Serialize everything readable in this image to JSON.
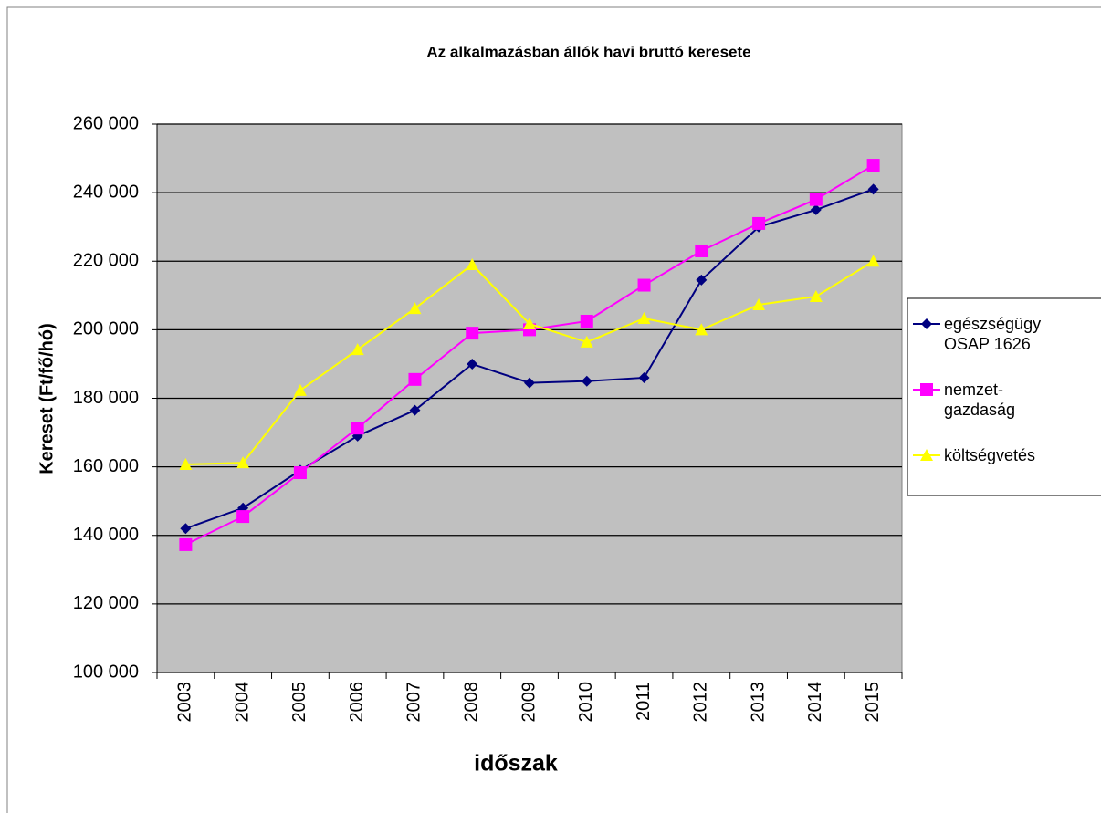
{
  "chart_data": {
    "type": "line",
    "title": "Az alkalmazásban állók havi bruttó keresete",
    "x_label": "időszak",
    "y_label": "Kereset (Ft/fő/hó)",
    "categories": [
      "2003",
      "2004",
      "2005",
      "2006",
      "2007",
      "2008",
      "2009",
      "2010",
      "2011",
      "2012",
      "2013",
      "2014",
      "2015"
    ],
    "series": [
      {
        "name": "egészségügy OSAP 1626",
        "color": "#000080",
        "marker": "diamond",
        "values": [
          142000,
          148000,
          159000,
          169000,
          176500,
          190000,
          184500,
          185000,
          186000,
          214500,
          230000,
          235000,
          241000
        ]
      },
      {
        "name": "nemzet-gazdaság",
        "color": "#ff00ff",
        "marker": "square",
        "values": [
          137300,
          145500,
          158300,
          171300,
          185500,
          199000,
          200000,
          202500,
          213000,
          223000,
          231000,
          238000,
          248000
        ]
      },
      {
        "name": "költségvetés",
        "color": "#ffff00",
        "marker": "triangle",
        "values": [
          160700,
          161200,
          182300,
          194200,
          206200,
          219000,
          201700,
          196400,
          203300,
          200000,
          207300,
          209700,
          220000
        ]
      }
    ],
    "ylim": [
      100000,
      260000
    ],
    "yticks": [
      {
        "value": 100000,
        "label": "100 000"
      },
      {
        "value": 120000,
        "label": "120 000"
      },
      {
        "value": 140000,
        "label": "140 000"
      },
      {
        "value": 160000,
        "label": "160 000"
      },
      {
        "value": 180000,
        "label": "180 000"
      },
      {
        "value": 200000,
        "label": "200 000"
      },
      {
        "value": 220000,
        "label": "220 000"
      },
      {
        "value": 240000,
        "label": "240 000"
      },
      {
        "value": 260000,
        "label": "260 000"
      }
    ],
    "grid": true,
    "legend": "right",
    "plot_background": "#c0c0c0"
  }
}
